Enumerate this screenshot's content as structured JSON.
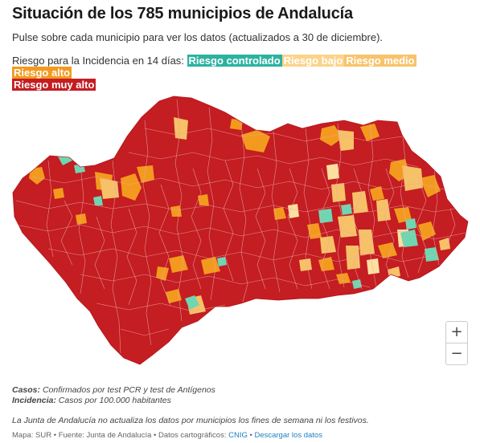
{
  "header": {
    "title": "Situación de los 785 municipios de Andalucía",
    "subtitle": "Pulse sobre cada municipio para ver los datos (actualizados a 30 de diciembre)."
  },
  "legend": {
    "prefix": "Riesgo para la Incidencia en 14 días:",
    "items": [
      {
        "label": "Riesgo controlado",
        "color": "#2bb3a0"
      },
      {
        "label": "Riesgo bajo",
        "color": "#fbd38a"
      },
      {
        "label": "Riesgo medio",
        "color": "#f8c36b"
      },
      {
        "label": "Riesgo alto",
        "color": "#f39a1e"
      },
      {
        "label": "Riesgo muy alto",
        "color": "#c41d22"
      }
    ]
  },
  "map": {
    "region": "Andalucía",
    "colors": {
      "muy_alto": "#c41d22",
      "alto": "#f39a1e",
      "medio": "#f7c168",
      "bajo": "#fde0a0",
      "controlado": "#6fd6b2",
      "border": "#e9a9a9"
    }
  },
  "zoom": {
    "in": "+",
    "out": "−"
  },
  "notes": {
    "casos_label": "Casos:",
    "casos_text": "Confirmados por test PCR y test de Antígenos",
    "incidencia_label": "Incidencia:",
    "incidencia_text": "Casos por 100.000 habitantes",
    "disclaimer": "La Junta de Andalucía no actualiza los datos por municipios los fines de semana ni los festivos."
  },
  "source": {
    "prefix": "Mapa: SUR • Fuente: Junta de Andalucía • Datos cartográficos:",
    "cnig": "CNIG",
    "separator": "•",
    "download": "Descargar los datos"
  }
}
